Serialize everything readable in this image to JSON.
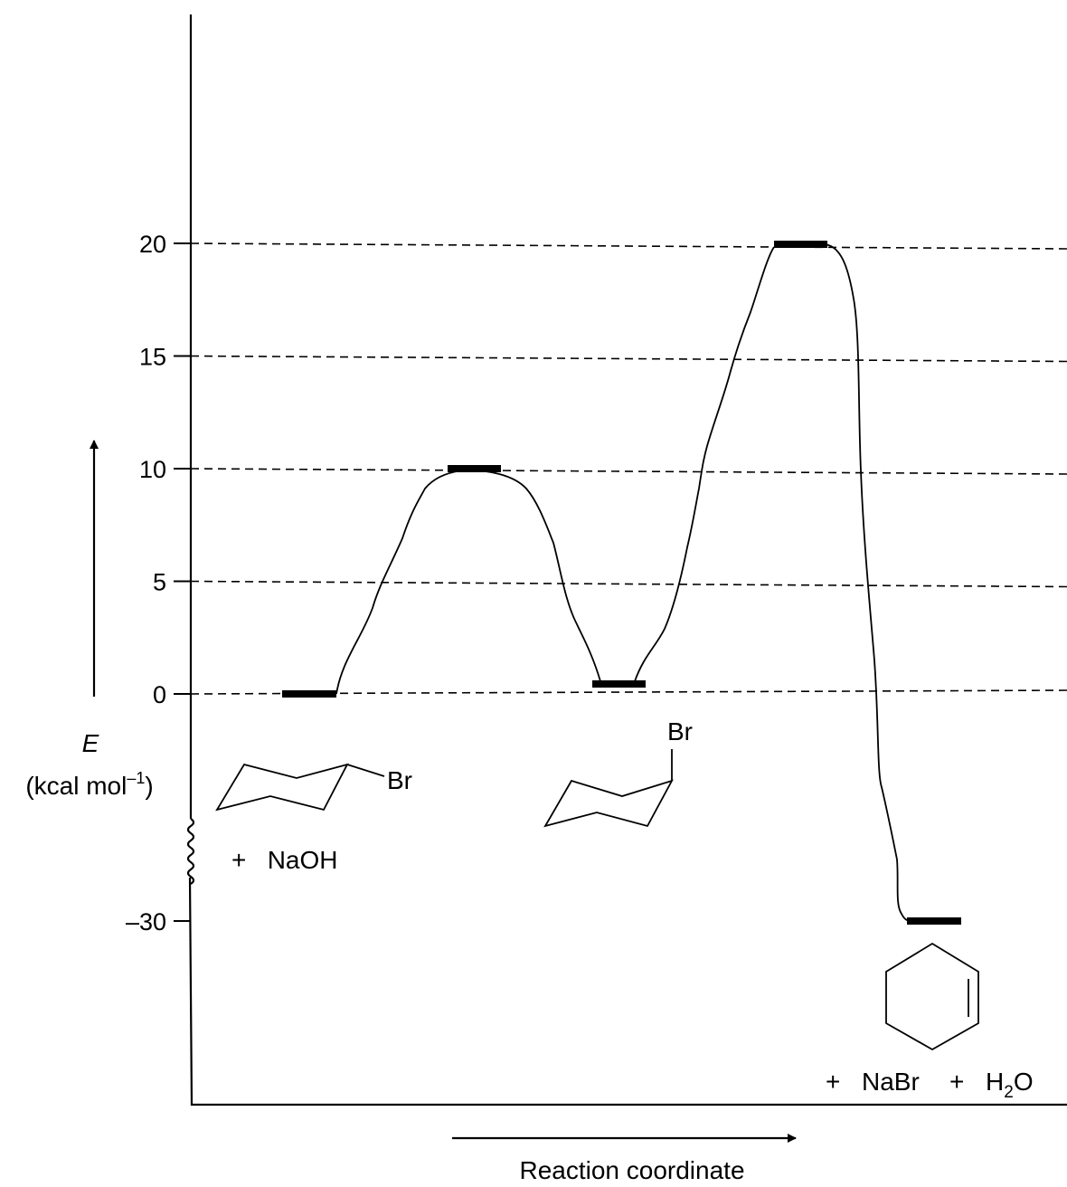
{
  "chart_data": {
    "type": "line",
    "title": "",
    "xlabel": "Reaction coordinate",
    "ylabel": "E",
    "ylabel_unit_prefix": "(kcal mol",
    "ylabel_unit_sup": "–1",
    "ylabel_unit_suffix": ")",
    "y_ticks": [
      {
        "value": 20,
        "label": "20"
      },
      {
        "value": 15,
        "label": "15"
      },
      {
        "value": 10,
        "label": "10"
      },
      {
        "value": 5,
        "label": "5"
      },
      {
        "value": 0,
        "label": "0"
      },
      {
        "value": -30,
        "label": "–30"
      }
    ],
    "axis_break": true,
    "grid_dashed_at": [
      20,
      15,
      10,
      5,
      0
    ],
    "energy_levels": [
      {
        "name": "reactants",
        "value": 0
      },
      {
        "name": "transition-state-1",
        "value": 10
      },
      {
        "name": "intermediate",
        "value": 0.5
      },
      {
        "name": "transition-state-2",
        "value": 20
      },
      {
        "name": "products",
        "value": -30
      }
    ],
    "species": {
      "reactant_substituent": "Br",
      "reactant_reagent": "+   NaOH",
      "intermediate_substituent": "Br",
      "products_plus_1": "+",
      "products_nabr": "NaBr",
      "products_plus_2": "+",
      "products_water_prefix": "H",
      "products_water_sub": "2",
      "products_water_suffix": "O"
    }
  }
}
